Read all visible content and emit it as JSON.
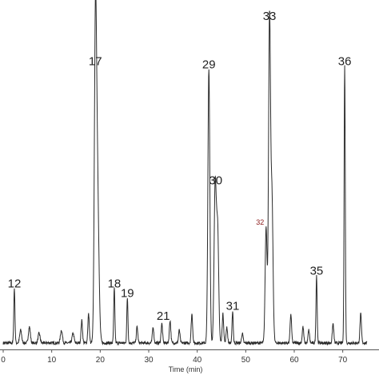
{
  "chart_data": {
    "type": "line",
    "xlabel": "Time (min)",
    "xlim": [
      0,
      75
    ],
    "ylim": [
      0,
      100
    ],
    "x_ticks": [
      {
        "value": 0,
        "label": "0"
      },
      {
        "value": 10,
        "label": "10"
      },
      {
        "value": 20,
        "label": "20"
      },
      {
        "value": 30,
        "label": "30"
      },
      {
        "value": 40,
        "label": "40"
      },
      {
        "value": 50,
        "label": "50"
      },
      {
        "value": 60,
        "label": "60"
      },
      {
        "value": 70,
        "label": "70"
      }
    ],
    "colors": {
      "trace": "#2b2b2b",
      "axis": "#555555",
      "label": "#222222",
      "label_small": "#8b1a1a"
    },
    "peaks": [
      {
        "x": 2.3,
        "y": 17,
        "w": 0.12
      },
      {
        "x": 19.0,
        "y": 86,
        "w": 0.22
      },
      {
        "x": 19.4,
        "y": 52,
        "w": 0.3
      },
      {
        "x": 22.9,
        "y": 17,
        "w": 0.12
      },
      {
        "x": 25.6,
        "y": 14,
        "w": 0.12
      },
      {
        "x": 42.4,
        "y": 85,
        "w": 0.2
      },
      {
        "x": 43.7,
        "y": 49,
        "w": 0.22
      },
      {
        "x": 44.2,
        "y": 35,
        "w": 0.22
      },
      {
        "x": 47.3,
        "y": 10,
        "w": 0.12
      },
      {
        "x": 54.2,
        "y": 36,
        "w": 0.2
      },
      {
        "x": 54.9,
        "y": 100,
        "w": 0.2
      },
      {
        "x": 55.4,
        "y": 45,
        "w": 0.22
      },
      {
        "x": 64.6,
        "y": 21,
        "w": 0.12
      },
      {
        "x": 70.4,
        "y": 86,
        "w": 0.12
      },
      {
        "x": 16.2,
        "y": 7,
        "w": 0.15
      },
      {
        "x": 17.6,
        "y": 9,
        "w": 0.15
      },
      {
        "x": 27.6,
        "y": 5,
        "w": 0.15
      },
      {
        "x": 30.9,
        "y": 5,
        "w": 0.15
      },
      {
        "x": 32.7,
        "y": 6,
        "w": 0.15
      },
      {
        "x": 34.4,
        "y": 7,
        "w": 0.15
      },
      {
        "x": 36.3,
        "y": 4,
        "w": 0.15
      },
      {
        "x": 38.9,
        "y": 9,
        "w": 0.15
      },
      {
        "x": 45.3,
        "y": 9,
        "w": 0.15
      },
      {
        "x": 46.1,
        "y": 5,
        "w": 0.15
      },
      {
        "x": 49.3,
        "y": 3,
        "w": 0.15
      },
      {
        "x": 59.3,
        "y": 9,
        "w": 0.15
      },
      {
        "x": 61.8,
        "y": 5,
        "w": 0.15
      },
      {
        "x": 63.0,
        "y": 4,
        "w": 0.15
      },
      {
        "x": 68.0,
        "y": 6,
        "w": 0.15
      },
      {
        "x": 73.7,
        "y": 9,
        "w": 0.15
      },
      {
        "x": 3.6,
        "y": 4,
        "w": 0.2
      },
      {
        "x": 5.4,
        "y": 5,
        "w": 0.2
      },
      {
        "x": 7.4,
        "y": 3,
        "w": 0.2
      },
      {
        "x": 12.0,
        "y": 4,
        "w": 0.2
      },
      {
        "x": 14.4,
        "y": 3,
        "w": 0.2
      }
    ],
    "annotations": [
      {
        "label": "12",
        "x": 2.3,
        "y": 17
      },
      {
        "label": "17",
        "x": 19.0,
        "y": 86
      },
      {
        "label": "18",
        "x": 22.9,
        "y": 17
      },
      {
        "label": "19",
        "x": 25.6,
        "y": 14
      },
      {
        "label": "21",
        "x": 33.0,
        "y": 7
      },
      {
        "label": "29",
        "x": 42.4,
        "y": 85
      },
      {
        "label": "30",
        "x": 43.8,
        "y": 49
      },
      {
        "label": "31",
        "x": 47.3,
        "y": 10
      },
      {
        "label": "32",
        "x": 54.1,
        "y": 36,
        "small": true
      },
      {
        "label": "33",
        "x": 54.9,
        "y": 100
      },
      {
        "label": "35",
        "x": 64.6,
        "y": 21
      },
      {
        "label": "36",
        "x": 70.4,
        "y": 86
      }
    ]
  }
}
